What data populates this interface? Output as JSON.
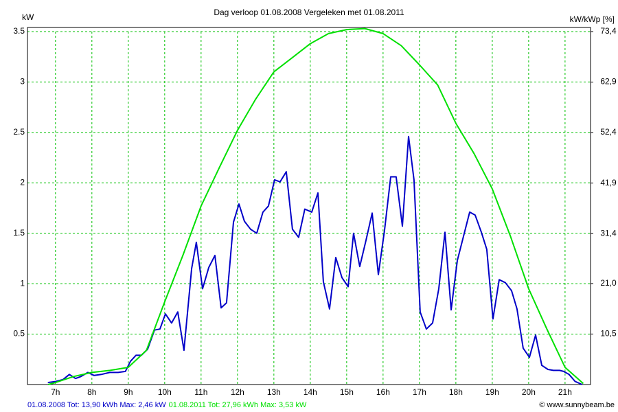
{
  "chart_data": {
    "type": "line",
    "title": "Dag  verloop 01.08.2008   Vergeleken met 01.08.2011",
    "ylabel": "kW",
    "y2label": "kW/kWp [%]",
    "credit": "© www.sunnybeam.be",
    "xlim": [
      6.23,
      21.7
    ],
    "xticks": [
      {
        "value": 7,
        "label": "7h"
      },
      {
        "value": 8,
        "label": "8h"
      },
      {
        "value": 9,
        "label": "9h"
      },
      {
        "value": 10,
        "label": "10h"
      },
      {
        "value": 11,
        "label": "11h"
      },
      {
        "value": 12,
        "label": "12h"
      },
      {
        "value": 13,
        "label": "13h"
      },
      {
        "value": 14,
        "label": "14h"
      },
      {
        "value": 15,
        "label": "15h"
      },
      {
        "value": 16,
        "label": "16h"
      },
      {
        "value": 17,
        "label": "17h"
      },
      {
        "value": 18,
        "label": "18h"
      },
      {
        "value": 19,
        "label": "19h"
      },
      {
        "value": 20,
        "label": "20h"
      },
      {
        "value": 21,
        "label": "21h"
      }
    ],
    "ylim": [
      0,
      3.5
    ],
    "yticks": [
      0.5,
      1,
      1.5,
      2,
      2.5,
      3,
      3.5
    ],
    "y2lim": [
      0,
      73.4
    ],
    "y2ticks": [
      {
        "value": 10.5,
        "label": "10,5"
      },
      {
        "value": 21.0,
        "label": "21,0"
      },
      {
        "value": 31.4,
        "label": "31,4"
      },
      {
        "value": 41.9,
        "label": "41,9"
      },
      {
        "value": 52.4,
        "label": "52,4"
      },
      {
        "value": 62.9,
        "label": "62,9"
      },
      {
        "value": 73.4,
        "label": "73,4"
      }
    ],
    "grid": true,
    "series": [
      {
        "name": "01.08.2008 Tot: 13,90 kWh Max: 2,46 kW",
        "color": "#0000c8",
        "x": [
          6.79,
          7.0,
          7.21,
          7.38,
          7.55,
          7.7,
          7.89,
          8.06,
          8.26,
          8.49,
          8.72,
          8.92,
          9.06,
          9.21,
          9.36,
          9.53,
          9.72,
          9.87,
          10.02,
          10.19,
          10.36,
          10.53,
          10.74,
          10.87,
          11.04,
          11.21,
          11.38,
          11.55,
          11.7,
          11.89,
          12.04,
          12.19,
          12.36,
          12.53,
          12.7,
          12.85,
          13.02,
          13.17,
          13.34,
          13.51,
          13.68,
          13.85,
          14.04,
          14.21,
          14.36,
          14.53,
          14.7,
          14.87,
          15.04,
          15.19,
          15.36,
          15.53,
          15.7,
          15.87,
          16.04,
          16.21,
          16.36,
          16.53,
          16.7,
          16.85,
          17.02,
          17.19,
          17.36,
          17.53,
          17.7,
          17.87,
          18.04,
          18.21,
          18.38,
          18.53,
          18.7,
          18.85,
          19.02,
          19.19,
          19.36,
          19.53,
          19.68,
          19.85,
          20.02,
          20.19,
          20.36,
          20.53,
          20.68,
          20.85,
          20.96,
          21.11,
          21.28,
          21.47
        ],
        "values": [
          0.02,
          0.03,
          0.05,
          0.1,
          0.06,
          0.08,
          0.12,
          0.09,
          0.1,
          0.12,
          0.12,
          0.13,
          0.23,
          0.29,
          0.29,
          0.35,
          0.54,
          0.55,
          0.7,
          0.61,
          0.72,
          0.34,
          1.15,
          1.41,
          0.95,
          1.16,
          1.28,
          0.76,
          0.81,
          1.61,
          1.79,
          1.62,
          1.54,
          1.5,
          1.71,
          1.77,
          2.03,
          2.01,
          2.11,
          1.54,
          1.46,
          1.74,
          1.71,
          1.9,
          1.02,
          0.75,
          1.26,
          1.06,
          0.97,
          1.5,
          1.17,
          1.43,
          1.7,
          1.09,
          1.53,
          2.06,
          2.06,
          1.57,
          2.46,
          2.03,
          0.72,
          0.55,
          0.61,
          0.95,
          1.51,
          0.74,
          1.23,
          1.47,
          1.71,
          1.68,
          1.51,
          1.34,
          0.65,
          1.04,
          1.01,
          0.93,
          0.75,
          0.36,
          0.27,
          0.49,
          0.19,
          0.15,
          0.14,
          0.14,
          0.13,
          0.1,
          0.03,
          0.0
        ]
      },
      {
        "name": "01.08.2011 Tot: 27,96 kWh Max: 3,53 kW",
        "color": "#00e000",
        "x": [
          6.8,
          7.0,
          7.5,
          8.0,
          8.5,
          9.0,
          9.5,
          10.0,
          10.5,
          11.0,
          11.5,
          12.0,
          12.5,
          13.0,
          13.5,
          14.0,
          14.5,
          15.0,
          15.5,
          16.0,
          16.5,
          17.0,
          17.5,
          18.0,
          18.5,
          19.0,
          19.5,
          20.0,
          20.5,
          21.0,
          21.5
        ],
        "values": [
          0.0,
          0.02,
          0.08,
          0.12,
          0.14,
          0.17,
          0.34,
          0.82,
          1.28,
          1.77,
          2.15,
          2.52,
          2.83,
          3.1,
          3.24,
          3.38,
          3.48,
          3.52,
          3.53,
          3.48,
          3.36,
          3.17,
          2.97,
          2.59,
          2.29,
          1.94,
          1.47,
          0.95,
          0.55,
          0.17,
          0.01
        ]
      }
    ]
  }
}
